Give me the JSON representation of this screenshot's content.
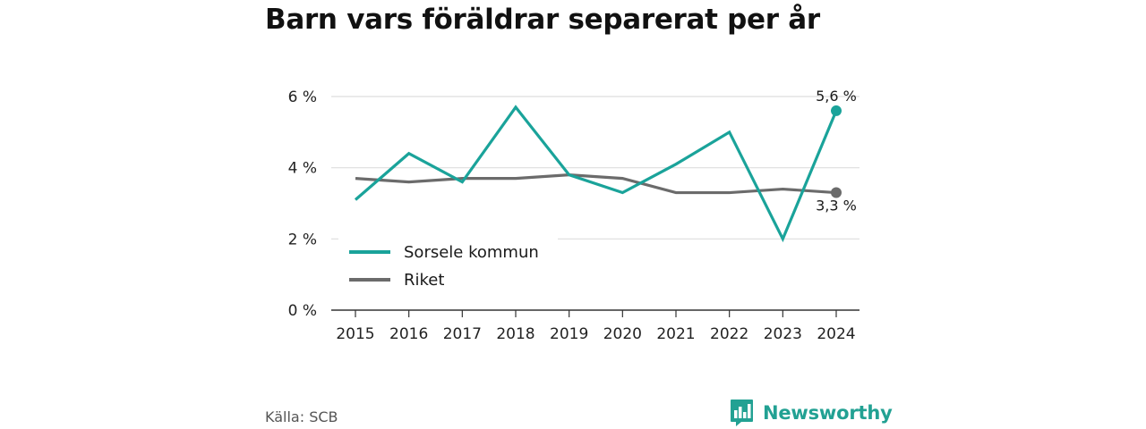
{
  "title": "Barn vars föräldrar separerat per år",
  "source": "Källa: SCB",
  "brand": {
    "name": "Newsworthy",
    "logo_icon": "bar-chart-speech-bubble-icon"
  },
  "colors": {
    "accent": "#1aa39a",
    "secondary": "#6b6b6b",
    "grid": "#dedede",
    "axis": "#333333",
    "brand": "#22a193"
  },
  "chart_data": {
    "type": "line",
    "categories": [
      "2015",
      "2016",
      "2017",
      "2018",
      "2019",
      "2020",
      "2021",
      "2022",
      "2023",
      "2024"
    ],
    "series": [
      {
        "name": "Sorsele kommun",
        "color": "#1aa39a",
        "values": [
          3.1,
          4.4,
          3.6,
          5.7,
          3.8,
          3.3,
          4.1,
          5.0,
          2.0,
          5.6
        ],
        "end_label": "5,6 %"
      },
      {
        "name": "Riket",
        "color": "#6b6b6b",
        "values": [
          3.7,
          3.6,
          3.7,
          3.7,
          3.8,
          3.7,
          3.3,
          3.3,
          3.4,
          3.3
        ],
        "end_label": "3,3 %"
      }
    ],
    "yticks": [
      0,
      2,
      4,
      6
    ],
    "ytick_labels": [
      "0 %",
      "2 %",
      "4 %",
      "6 %"
    ],
    "ylim": [
      0,
      6
    ],
    "grid": true,
    "legend_position": "bottom-left"
  }
}
